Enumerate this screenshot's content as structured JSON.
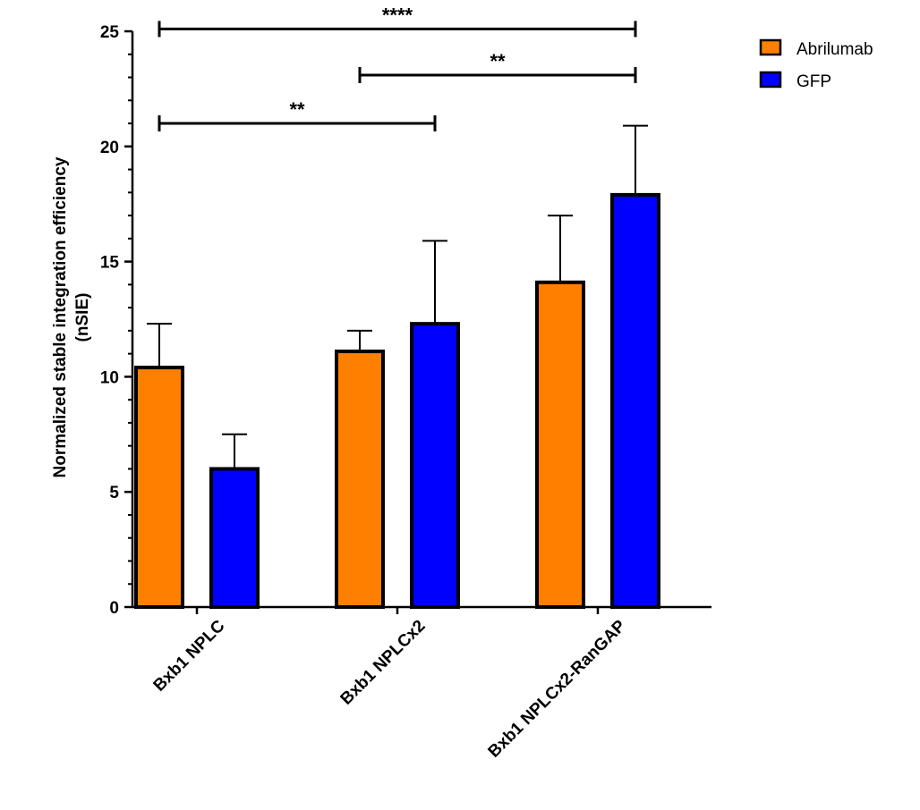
{
  "chart_data": {
    "type": "bar",
    "categories": [
      "Bxb1 NPLC",
      "Bxb1 NPLCx2",
      "Bxb1 NPLCx2-RanGAP"
    ],
    "series": [
      {
        "name": "Abrilumab",
        "color": "#FF8000",
        "values": [
          10.4,
          11.1,
          14.1
        ],
        "error_upper": [
          12.3,
          12.0,
          17.0
        ]
      },
      {
        "name": "GFP",
        "color": "#0000FF",
        "values": [
          6.0,
          12.3,
          17.9
        ],
        "error_upper": [
          7.5,
          15.9,
          20.9
        ]
      }
    ],
    "ylabel": [
      "Normalized stable integration efficiency",
      "(nSIE)"
    ],
    "ylim": [
      0,
      25
    ],
    "y_ticks": [
      0,
      5,
      10,
      15,
      20,
      25
    ],
    "legend_position": "top-right",
    "significance": [
      {
        "from": "Bxb1 NPLC",
        "to": "Bxb1 NPLCx2",
        "label": "**",
        "level": 21
      },
      {
        "from": "Bxb1 NPLCx2",
        "to": "Bxb1 NPLCx2-RanGAP",
        "label": "**",
        "level": 23.1
      },
      {
        "from": "Bxb1 NPLC",
        "to": "Bxb1 NPLCx2-RanGAP",
        "label": "****",
        "level": 25.1
      }
    ]
  }
}
